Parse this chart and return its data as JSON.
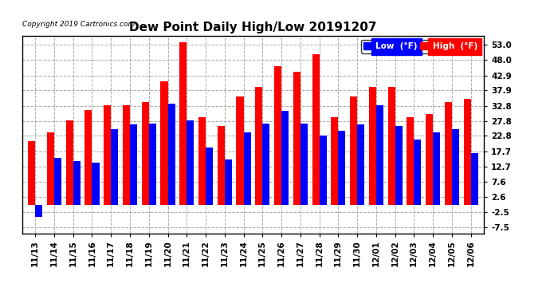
{
  "title": "Dew Point Daily High/Low 20191207",
  "copyright": "Copyright 2019 Cartronics.com",
  "dates": [
    "11/13",
    "11/14",
    "11/15",
    "11/16",
    "11/17",
    "11/18",
    "11/19",
    "11/20",
    "11/21",
    "11/22",
    "11/23",
    "11/24",
    "11/25",
    "11/26",
    "11/27",
    "11/28",
    "11/29",
    "11/30",
    "12/01",
    "12/02",
    "12/03",
    "12/04",
    "12/05",
    "12/06"
  ],
  "high": [
    21.0,
    24.0,
    28.0,
    31.5,
    33.0,
    33.0,
    34.0,
    41.0,
    54.0,
    29.0,
    26.0,
    36.0,
    39.0,
    46.0,
    44.0,
    50.0,
    29.0,
    36.0,
    39.0,
    39.0,
    29.0,
    30.0,
    34.0,
    35.0
  ],
  "low": [
    -4.0,
    15.5,
    14.5,
    14.0,
    25.0,
    26.5,
    27.0,
    33.5,
    28.0,
    19.0,
    15.0,
    24.0,
    27.0,
    31.0,
    27.0,
    23.0,
    24.5,
    26.5,
    33.0,
    26.0,
    21.5,
    24.0,
    25.0,
    17.0
  ],
  "yticks": [
    -7.5,
    -2.5,
    2.6,
    7.6,
    12.7,
    17.7,
    22.8,
    27.8,
    32.8,
    37.9,
    42.9,
    48.0,
    53.0
  ],
  "ylim": [
    -9.5,
    56.0
  ],
  "bar_width": 0.38,
  "high_color": "#ff0000",
  "low_color": "#0000ff",
  "bg_color": "#ffffff",
  "grid_color": "#aaaaaa",
  "title_fontsize": 11,
  "tick_fontsize": 7.5,
  "legend_low_label": "Low  (°F)",
  "legend_high_label": "High  (°F)"
}
